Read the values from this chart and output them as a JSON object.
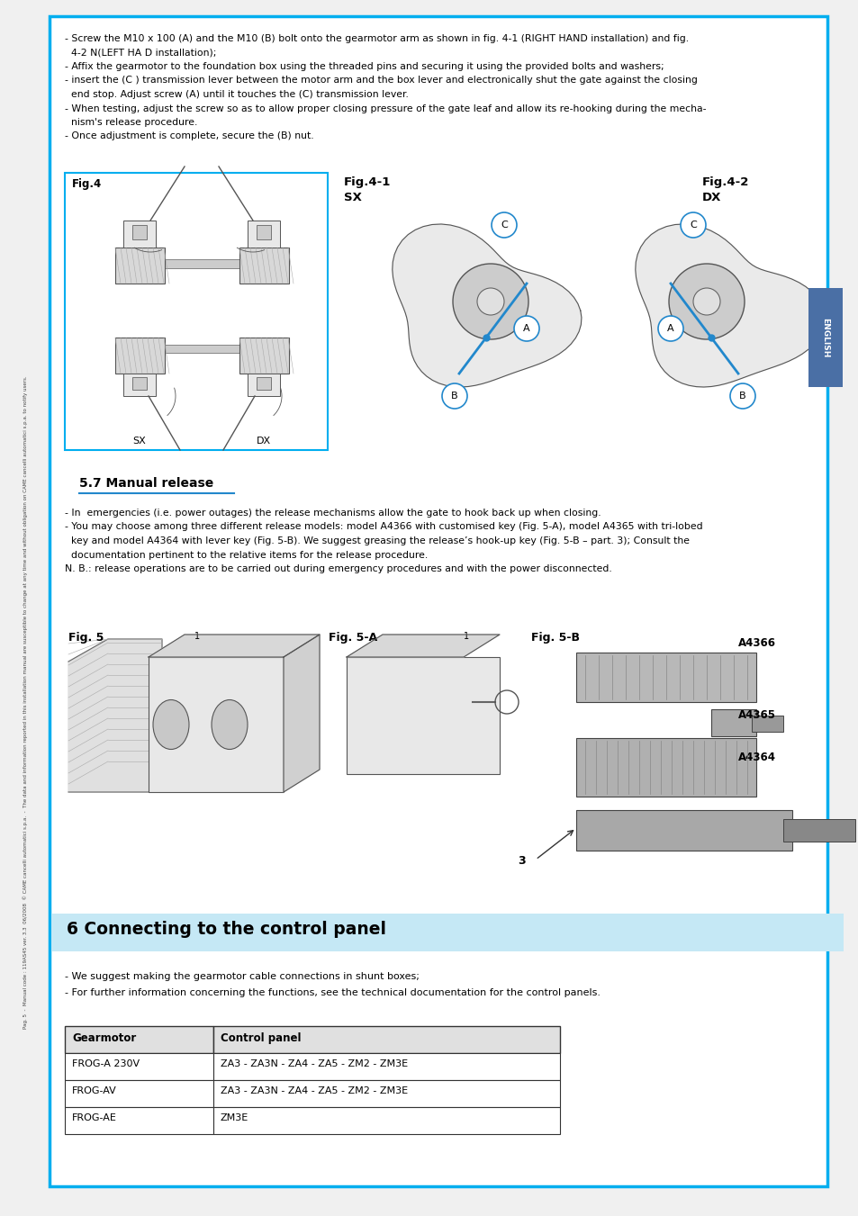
{
  "page_bg": "#ffffff",
  "border_color": "#00aeef",
  "section_header_bg": "#c5e8f5",
  "section_header_text": "6 Connecting to the control panel",
  "manual_release_title": "5.7 Manual release",
  "english_tab_bg": "#4a6fa5",
  "english_tab_text": "ENGLISH",
  "bullet_texts_top": [
    "- Screw the M10 x 100 (A) and the M10 (B) bolt onto the gearmotor arm as shown in fig. 4-1 (RIGHT HAND installation) and fig.",
    "  4-2 N(LEFT HA D installation);",
    "- Affix the gearmotor to the foundation box using the threaded pins and securing it using the provided bolts and washers;",
    "- insert the (C ) transmission lever between the motor arm and the box lever and electronically shut the gate against the closing",
    "  end stop. Adjust screw (A) until it touches the (C) transmission lever.",
    "- When testing, adjust the screw so as to allow proper closing pressure of the gate leaf and allow its re-hooking during the mecha-",
    "  nism's release procedure.",
    "- Once adjustment is complete, secure the (B) nut."
  ],
  "bullet_texts_middle": [
    "- In  emergencies (i.e. power outages) the release mechanisms allow the gate to hook back up when closing.",
    "- You may choose among three different release models: model A4366 with customised key (Fig. 5-A), model A4365 with tri-lobed",
    "  key and model A4364 with lever key (Fig. 5-B). We suggest greasing the release’s hook-up key (Fig. 5-B – part. 3); Consult the",
    "  documentation pertinent to the relative items for the release procedure.",
    "N. B.: release operations are to be carried out during emergency procedures and with the power disconnected."
  ],
  "bullet_texts_bottom": [
    "- We suggest making the gearmotor cable connections in shunt boxes;",
    "- For further information concerning the functions, see the technical documentation for the control panels."
  ],
  "table_headers": [
    "Gearmotor",
    "Control panel"
  ],
  "table_rows": [
    [
      "FROG-A 230V",
      "ZA3 - ZA3N - ZA4 - ZA5 - ZM2 - ZM3E"
    ],
    [
      "FROG-AV",
      "ZA3 - ZA3N - ZA4 - ZA5 - ZM2 - ZM3E"
    ],
    [
      "FROG-AE",
      "ZM3E"
    ]
  ],
  "sidebar_text": "Pag. 5  -  Manual code : 119AS45 ver. 3.3  06/2008  © CAME cancelli automatici s.p.a.  -  The data and information reported in this installation manual are susceptible to change at any time and without obligation on CAME cancelli automatici s.p.a. to notify users."
}
